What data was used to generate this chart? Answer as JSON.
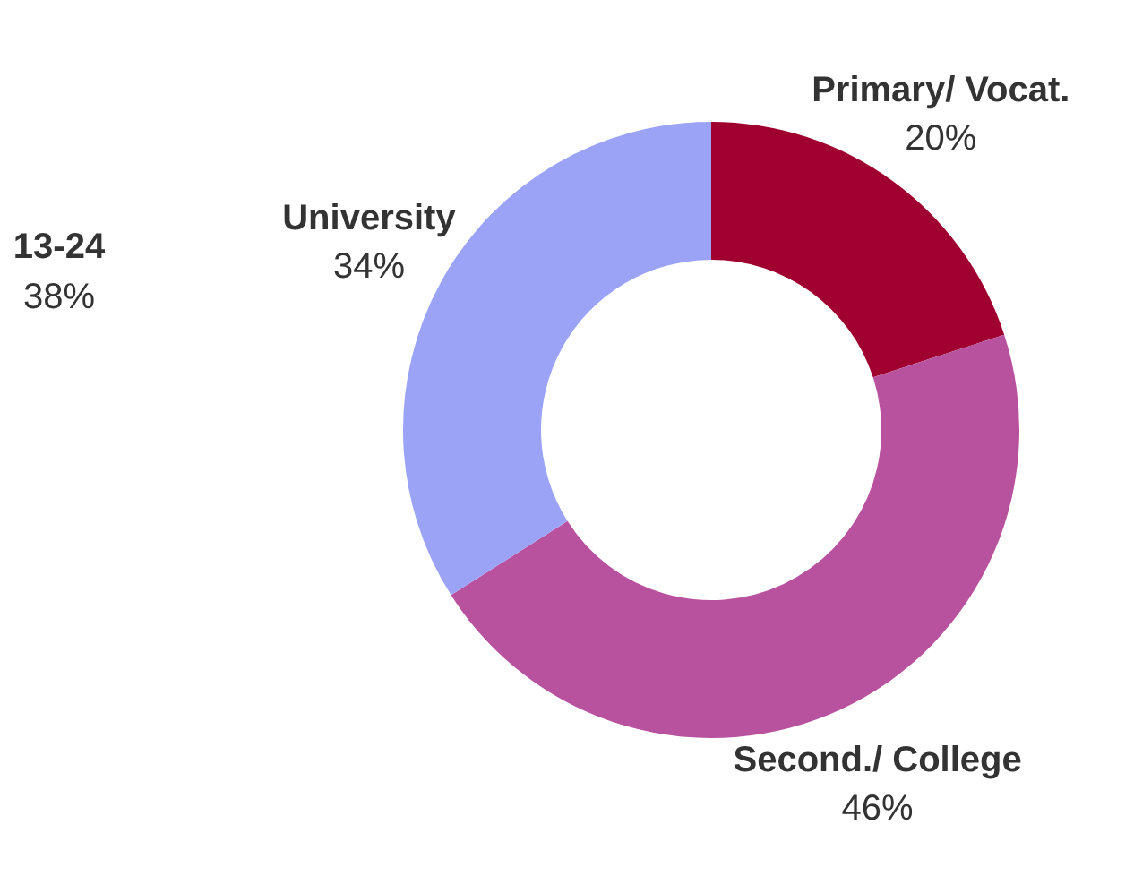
{
  "chart_data": {
    "type": "donut",
    "categories": [
      "Primary/ Vocat.",
      "Second./ College",
      "University"
    ],
    "values": [
      20,
      46,
      34
    ],
    "value_labels": [
      "20%",
      "46%",
      "34%"
    ],
    "colors": [
      "#a0002f",
      "#b8529f",
      "#9ba3f7"
    ],
    "annotations": [
      "13-24",
      "38%"
    ]
  }
}
